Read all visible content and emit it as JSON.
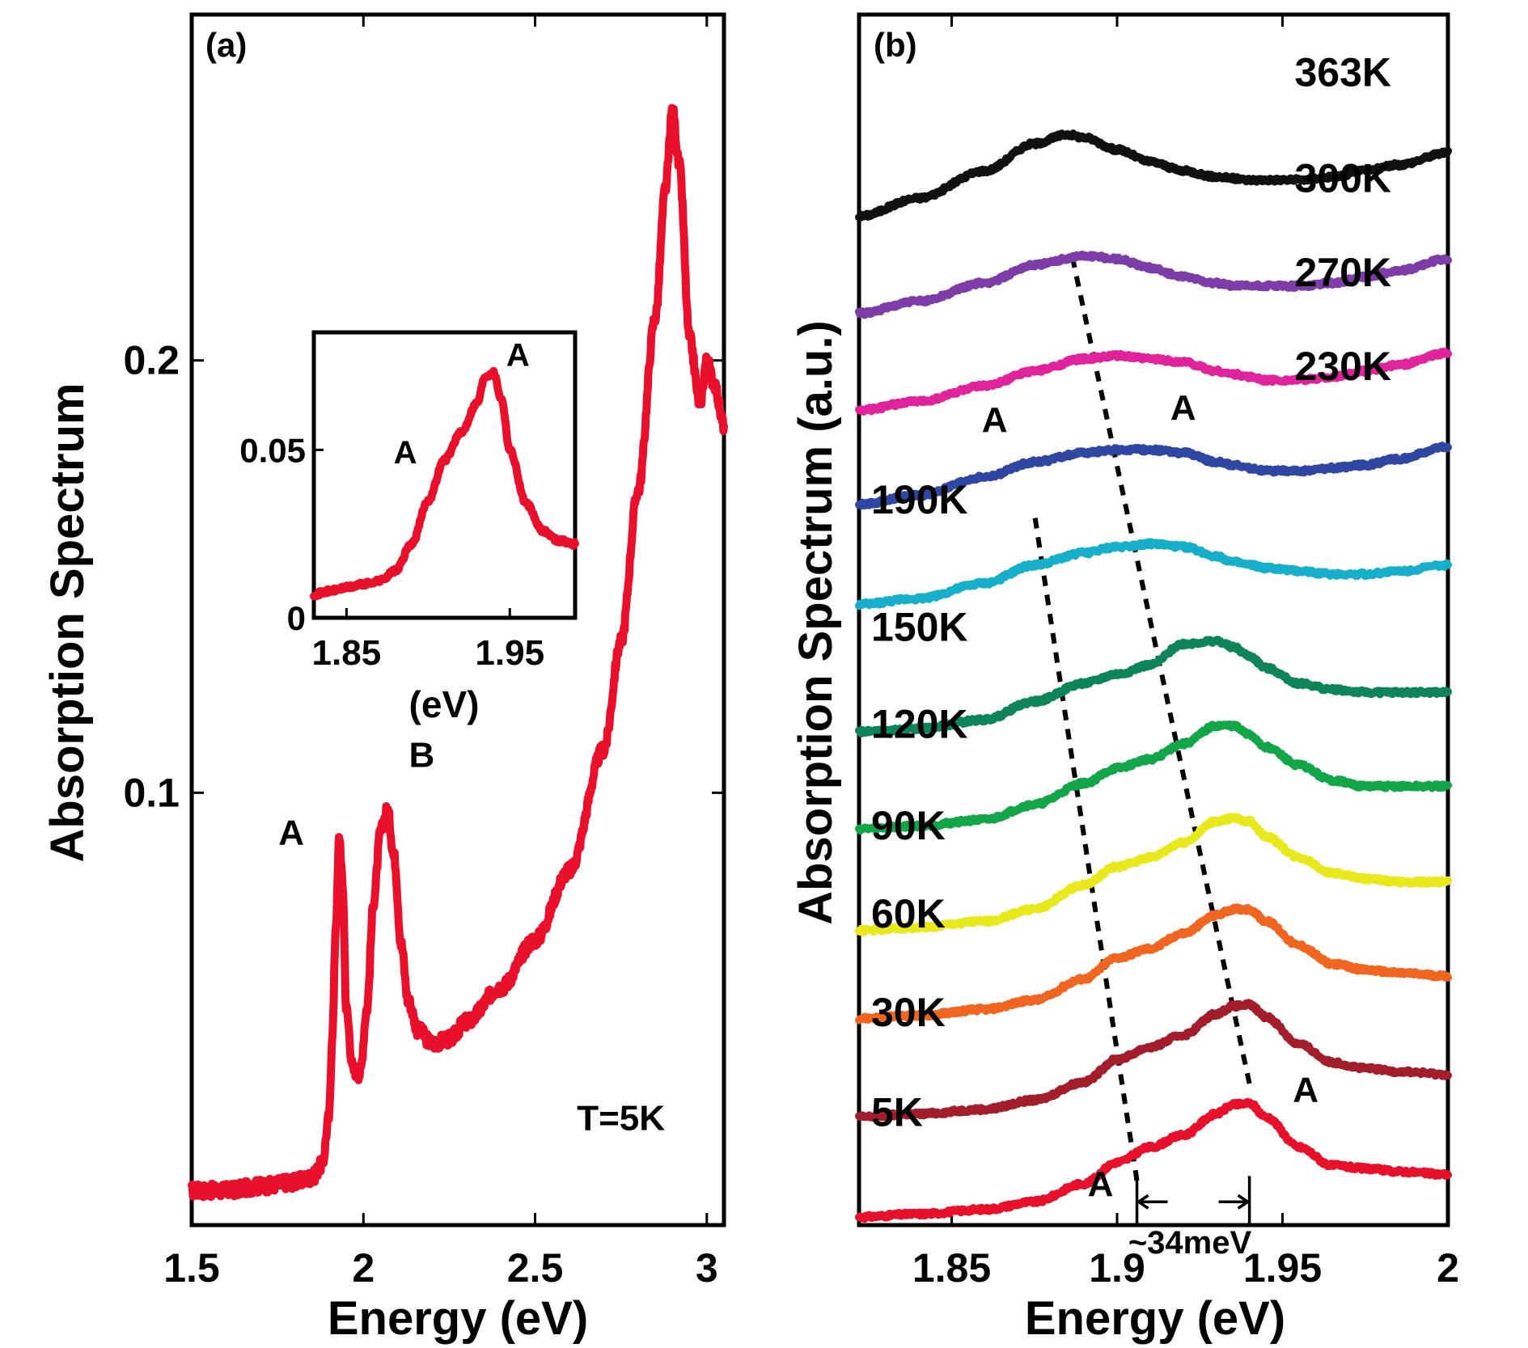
{
  "chart_data": [
    {
      "id": "a",
      "type": "line",
      "panel_label": "(a)",
      "xlabel": "Energy (eV)",
      "ylabel": "Absorption Spectrum",
      "xlim": [
        1.5,
        3.05
      ],
      "ylim": [
        0,
        0.28
      ],
      "xticks": [
        1.5,
        2,
        2.5,
        3
      ],
      "xtick_labels": [
        "1.5",
        "2",
        "2.5",
        "3"
      ],
      "yticks": [
        0.1,
        0.2
      ],
      "ytick_labels": [
        "0.1",
        "0.2"
      ],
      "color": "#e8102a",
      "grid": false,
      "series": [
        {
          "x": [
            1.5,
            1.6,
            1.7,
            1.8,
            1.85,
            1.88,
            1.9,
            1.91,
            1.92,
            1.93,
            1.94,
            1.95,
            1.97,
            1.99,
            2.01,
            2.03,
            2.05,
            2.07,
            2.09,
            2.11,
            2.13,
            2.16,
            2.2,
            2.25,
            2.3,
            2.4,
            2.5,
            2.6,
            2.7,
            2.75,
            2.8,
            2.85,
            2.88,
            2.9,
            2.92,
            2.95,
            2.98,
            3.0,
            3.02,
            3.05
          ],
          "y": [
            0.008,
            0.008,
            0.009,
            0.01,
            0.011,
            0.014,
            0.025,
            0.045,
            0.07,
            0.09,
            0.078,
            0.05,
            0.036,
            0.035,
            0.05,
            0.075,
            0.091,
            0.096,
            0.085,
            0.065,
            0.052,
            0.045,
            0.042,
            0.043,
            0.047,
            0.055,
            0.066,
            0.082,
            0.11,
            0.135,
            0.17,
            0.21,
            0.24,
            0.258,
            0.245,
            0.205,
            0.19,
            0.2,
            0.195,
            0.185
          ]
        }
      ],
      "annotations": [
        {
          "text": "A",
          "x": 1.79,
          "y": 0.088
        },
        {
          "text": "B",
          "x": 2.17,
          "y": 0.106
        },
        {
          "text": "T=5K",
          "x": 2.75,
          "y": 0.022
        }
      ],
      "inset": {
        "xlim": [
          1.83,
          1.99
        ],
        "ylim": [
          0,
          0.085
        ],
        "xticks": [
          1.85,
          1.95
        ],
        "xtick_labels": [
          "1.85",
          "1.95"
        ],
        "yticks": [
          0,
          0.05
        ],
        "ytick_labels": [
          "0",
          "0.05"
        ],
        "xlabel": "(eV)",
        "series": [
          {
            "x": [
              1.83,
              1.84,
              1.85,
              1.86,
              1.87,
              1.88,
              1.89,
              1.9,
              1.91,
              1.92,
              1.93,
              1.935,
              1.94,
              1.945,
              1.95,
              1.96,
              1.97,
              1.98,
              1.99
            ],
            "y": [
              0.007,
              0.008,
              0.009,
              0.01,
              0.011,
              0.014,
              0.022,
              0.035,
              0.047,
              0.055,
              0.064,
              0.072,
              0.073,
              0.065,
              0.05,
              0.034,
              0.026,
              0.023,
              0.022
            ]
          }
        ],
        "annotations": [
          {
            "text": "A",
            "x": 1.955,
            "y": 0.075
          },
          {
            "text": "A",
            "x": 1.886,
            "y": 0.046
          }
        ]
      }
    },
    {
      "id": "b",
      "type": "line",
      "panel_label": "(b)",
      "xlabel": "Energy (eV)",
      "ylabel": "Absorption Spectrum (a.u.)",
      "xlim": [
        1.822,
        2.0
      ],
      "xticks": [
        1.85,
        1.9,
        1.95,
        2
      ],
      "xtick_labels": [
        "1.85",
        "1.9",
        "1.95",
        "2"
      ],
      "grid": false,
      "series": [
        {
          "name": "5K",
          "color": "#e8102a",
          "offset": 0.0,
          "x": [
            1.822,
            1.84,
            1.86,
            1.875,
            1.89,
            1.9,
            1.91,
            1.92,
            1.93,
            1.935,
            1.94,
            1.945,
            1.955,
            1.965,
            1.975,
            1.985,
            2.0
          ],
          "y": [
            0.0,
            0.01,
            0.025,
            0.05,
            0.11,
            0.18,
            0.23,
            0.27,
            0.34,
            0.37,
            0.375,
            0.33,
            0.23,
            0.17,
            0.16,
            0.15,
            0.14
          ]
        },
        {
          "name": "30K",
          "color": "#a31d2a",
          "offset": 0.33,
          "x": [
            1.822,
            1.84,
            1.86,
            1.875,
            1.89,
            1.9,
            1.91,
            1.92,
            1.93,
            1.935,
            1.94,
            1.945,
            1.955,
            1.965,
            1.975,
            1.985,
            2.0
          ],
          "y": [
            0.0,
            0.01,
            0.025,
            0.055,
            0.115,
            0.19,
            0.23,
            0.27,
            0.34,
            0.365,
            0.37,
            0.33,
            0.24,
            0.18,
            0.16,
            0.15,
            0.14
          ]
        },
        {
          "name": "60K",
          "color": "#f0651f",
          "offset": 0.655,
          "x": [
            1.822,
            1.84,
            1.86,
            1.875,
            1.89,
            1.9,
            1.91,
            1.92,
            1.93,
            1.935,
            1.94,
            1.945,
            1.955,
            1.965,
            1.975,
            1.985,
            2.0
          ],
          "y": [
            0.0,
            0.01,
            0.03,
            0.06,
            0.13,
            0.2,
            0.23,
            0.28,
            0.34,
            0.36,
            0.36,
            0.32,
            0.24,
            0.18,
            0.16,
            0.15,
            0.14
          ]
        },
        {
          "name": "90K",
          "color": "#e8e81a",
          "offset": 0.945,
          "x": [
            1.822,
            1.84,
            1.86,
            1.875,
            1.89,
            1.9,
            1.91,
            1.92,
            1.93,
            1.935,
            1.94,
            1.945,
            1.955,
            1.965,
            1.975,
            1.985,
            2.0
          ],
          "y": [
            0.0,
            0.01,
            0.03,
            0.07,
            0.15,
            0.21,
            0.24,
            0.29,
            0.36,
            0.37,
            0.36,
            0.31,
            0.24,
            0.19,
            0.17,
            0.16,
            0.16
          ]
        },
        {
          "name": "120K",
          "color": "#12a648",
          "offset": 1.28,
          "x": [
            1.822,
            1.84,
            1.86,
            1.875,
            1.89,
            1.9,
            1.91,
            1.92,
            1.93,
            1.935,
            1.94,
            1.945,
            1.955,
            1.965,
            1.975,
            1.985,
            2.0
          ],
          "y": [
            0.0,
            0.01,
            0.03,
            0.08,
            0.15,
            0.2,
            0.23,
            0.28,
            0.34,
            0.34,
            0.31,
            0.27,
            0.21,
            0.16,
            0.14,
            0.14,
            0.14
          ]
        },
        {
          "name": "150K",
          "color": "#0d8558",
          "offset": 1.6,
          "x": [
            1.822,
            1.84,
            1.86,
            1.875,
            1.89,
            1.9,
            1.91,
            1.92,
            1.93,
            1.935,
            1.94,
            1.945,
            1.955,
            1.965,
            1.975,
            1.985,
            2.0
          ],
          "y": [
            0.0,
            0.01,
            0.04,
            0.1,
            0.16,
            0.19,
            0.22,
            0.29,
            0.3,
            0.28,
            0.25,
            0.21,
            0.16,
            0.14,
            0.13,
            0.13,
            0.13
          ]
        },
        {
          "name": "190K",
          "color": "#15aecb",
          "offset": 2.02,
          "x": [
            1.822,
            1.84,
            1.86,
            1.875,
            1.89,
            1.9,
            1.91,
            1.92,
            1.93,
            1.935,
            1.94,
            1.945,
            1.955,
            1.965,
            1.975,
            1.985,
            2.0
          ],
          "y": [
            0.0,
            0.02,
            0.07,
            0.13,
            0.17,
            0.19,
            0.2,
            0.19,
            0.16,
            0.14,
            0.13,
            0.12,
            0.11,
            0.1,
            0.1,
            0.11,
            0.13
          ]
        },
        {
          "name": "230K",
          "color": "#3046a3",
          "offset": 2.35,
          "x": [
            1.822,
            1.84,
            1.86,
            1.875,
            1.89,
            1.9,
            1.91,
            1.92,
            1.93,
            1.935,
            1.94,
            1.945,
            1.955,
            1.965,
            1.975,
            1.985,
            2.0
          ],
          "y": [
            0.0,
            0.03,
            0.09,
            0.14,
            0.17,
            0.18,
            0.18,
            0.17,
            0.14,
            0.13,
            0.12,
            0.11,
            0.11,
            0.12,
            0.13,
            0.15,
            0.19
          ]
        },
        {
          "name": "270K",
          "color": "#e0239c",
          "offset": 2.66,
          "x": [
            1.822,
            1.84,
            1.86,
            1.875,
            1.89,
            1.9,
            1.91,
            1.92,
            1.93,
            1.935,
            1.94,
            1.945,
            1.955,
            1.965,
            1.975,
            1.985,
            2.0
          ],
          "y": [
            0.0,
            0.03,
            0.08,
            0.13,
            0.17,
            0.18,
            0.17,
            0.16,
            0.13,
            0.12,
            0.11,
            0.1,
            0.1,
            0.11,
            0.13,
            0.15,
            0.19
          ]
        },
        {
          "name": "300K",
          "color": "#7d3ca8",
          "offset": 2.98,
          "x": [
            1.822,
            1.84,
            1.86,
            1.875,
            1.89,
            1.9,
            1.91,
            1.92,
            1.93,
            1.935,
            1.94,
            1.945,
            1.955,
            1.965,
            1.975,
            1.985,
            2.0
          ],
          "y": [
            0.0,
            0.04,
            0.1,
            0.16,
            0.19,
            0.18,
            0.15,
            0.12,
            0.1,
            0.09,
            0.09,
            0.09,
            0.09,
            0.1,
            0.12,
            0.14,
            0.18
          ]
        },
        {
          "name": "363K",
          "color": "#111111",
          "offset": 3.3,
          "x": [
            1.822,
            1.84,
            1.86,
            1.875,
            1.885,
            1.89,
            1.9,
            1.91,
            1.92,
            1.93,
            1.94,
            1.945,
            1.955,
            1.965,
            1.975,
            1.985,
            2.0
          ],
          "y": [
            0.0,
            0.06,
            0.15,
            0.24,
            0.27,
            0.26,
            0.22,
            0.18,
            0.15,
            0.13,
            0.12,
            0.12,
            0.12,
            0.13,
            0.15,
            0.17,
            0.21
          ]
        }
      ],
      "annotations": [
        {
          "text": "A",
          "x": 1.863,
          "y": 2.59
        },
        {
          "text": "A",
          "x": 1.92,
          "y": 2.63
        },
        {
          "text": "A",
          "x": 1.957,
          "y": 0.38
        },
        {
          "text": "A",
          "x": 1.895,
          "y": 0.07
        },
        {
          "text": "~34meV",
          "x": 1.922,
          "y": -0.12
        }
      ],
      "guides": [
        {
          "x": [
            1.906,
            1.875
          ],
          "y": [
            0.12,
            2.32
          ]
        },
        {
          "x": [
            1.94,
            1.886
          ],
          "y": [
            0.44,
            3.19
          ]
        }
      ],
      "splitting": {
        "x1": 1.906,
        "x2": 1.94,
        "y": 0.05
      }
    }
  ]
}
